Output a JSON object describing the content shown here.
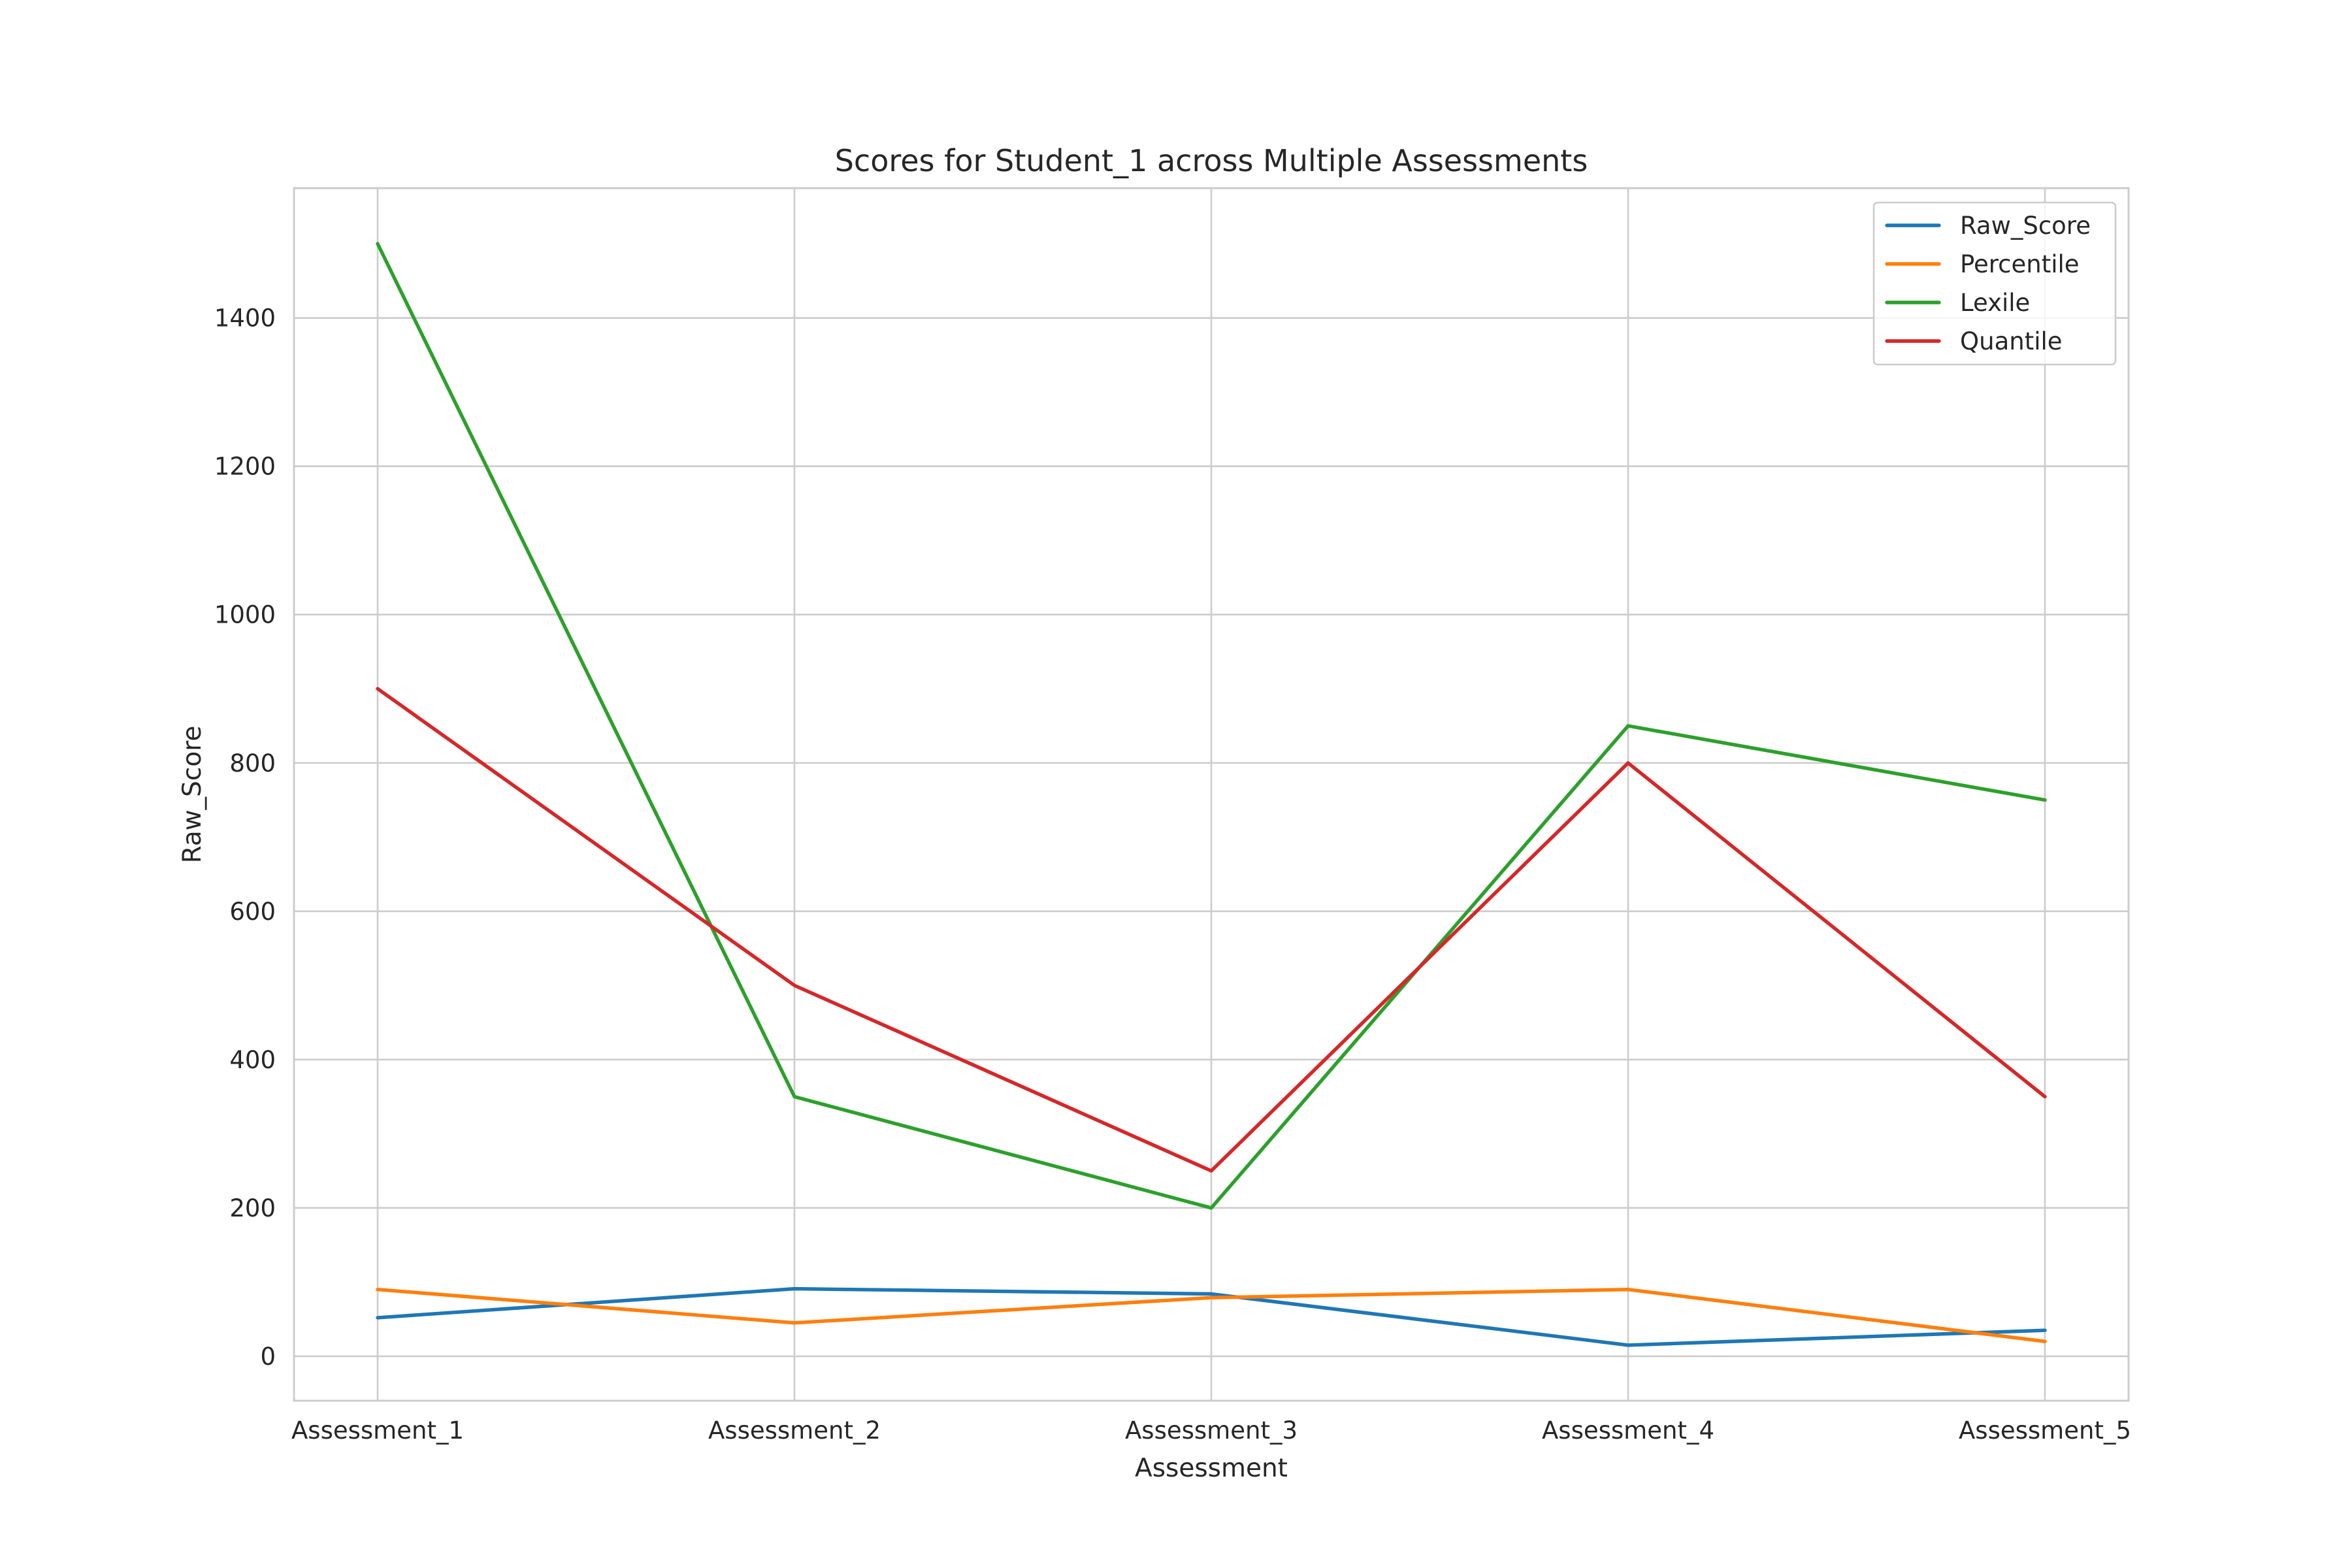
{
  "chart_data": {
    "type": "line",
    "title": "Scores for Student_1 across Multiple Assessments",
    "xlabel": "Assessment",
    "ylabel": "Raw_Score",
    "categories": [
      "Assessment_1",
      "Assessment_2",
      "Assessment_3",
      "Assessment_4",
      "Assessment_5"
    ],
    "series": [
      {
        "name": "Raw_Score",
        "color": "#1f77b4",
        "values": [
          52,
          91,
          84,
          15,
          35
        ]
      },
      {
        "name": "Percentile",
        "color": "#ff7f0e",
        "values": [
          90,
          45,
          79,
          90,
          20
        ]
      },
      {
        "name": "Lexile",
        "color": "#2ca02c",
        "values": [
          1500,
          350,
          200,
          850,
          750
        ]
      },
      {
        "name": "Quantile",
        "color": "#d62728",
        "values": [
          900,
          500,
          250,
          800,
          350
        ]
      }
    ],
    "yticks": [
      0,
      200,
      400,
      600,
      800,
      1000,
      1200,
      1400
    ],
    "ylim": [
      -60,
      1575
    ],
    "grid": true,
    "legend_position": "top-right"
  }
}
